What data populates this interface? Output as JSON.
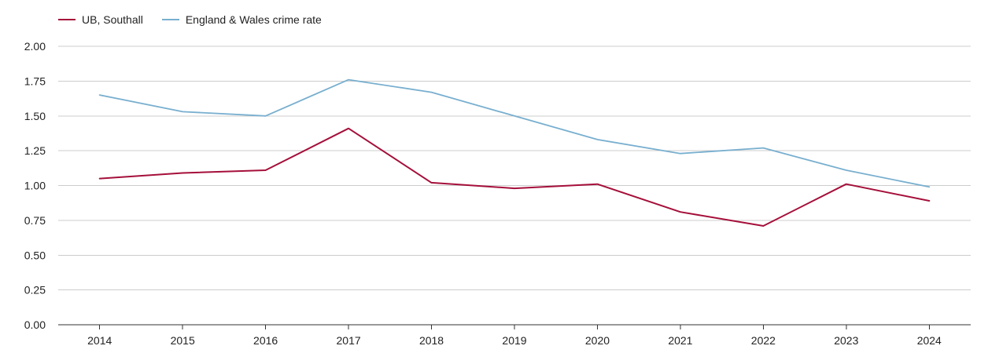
{
  "chart_data": {
    "type": "line",
    "title": "",
    "xlabel": "",
    "ylabel": "",
    "categories": [
      "2014",
      "2015",
      "2016",
      "2017",
      "2018",
      "2019",
      "2020",
      "2021",
      "2022",
      "2023",
      "2024"
    ],
    "ylim": [
      0,
      2.0
    ],
    "yticks": [
      "0.00",
      "0.25",
      "0.50",
      "0.75",
      "1.00",
      "1.25",
      "1.50",
      "1.75",
      "2.00"
    ],
    "grid": true,
    "legend_position": "top-left",
    "series": [
      {
        "name": "UB, Southall",
        "color": "#a50f3a",
        "values": [
          1.05,
          1.09,
          1.11,
          1.41,
          1.02,
          0.98,
          1.01,
          0.81,
          0.71,
          1.01,
          0.89
        ]
      },
      {
        "name": "England & Wales crime rate",
        "color": "#78afcf",
        "values": [
          1.65,
          1.53,
          1.5,
          1.76,
          1.67,
          1.5,
          1.33,
          1.23,
          1.27,
          1.11,
          0.99
        ]
      }
    ]
  }
}
